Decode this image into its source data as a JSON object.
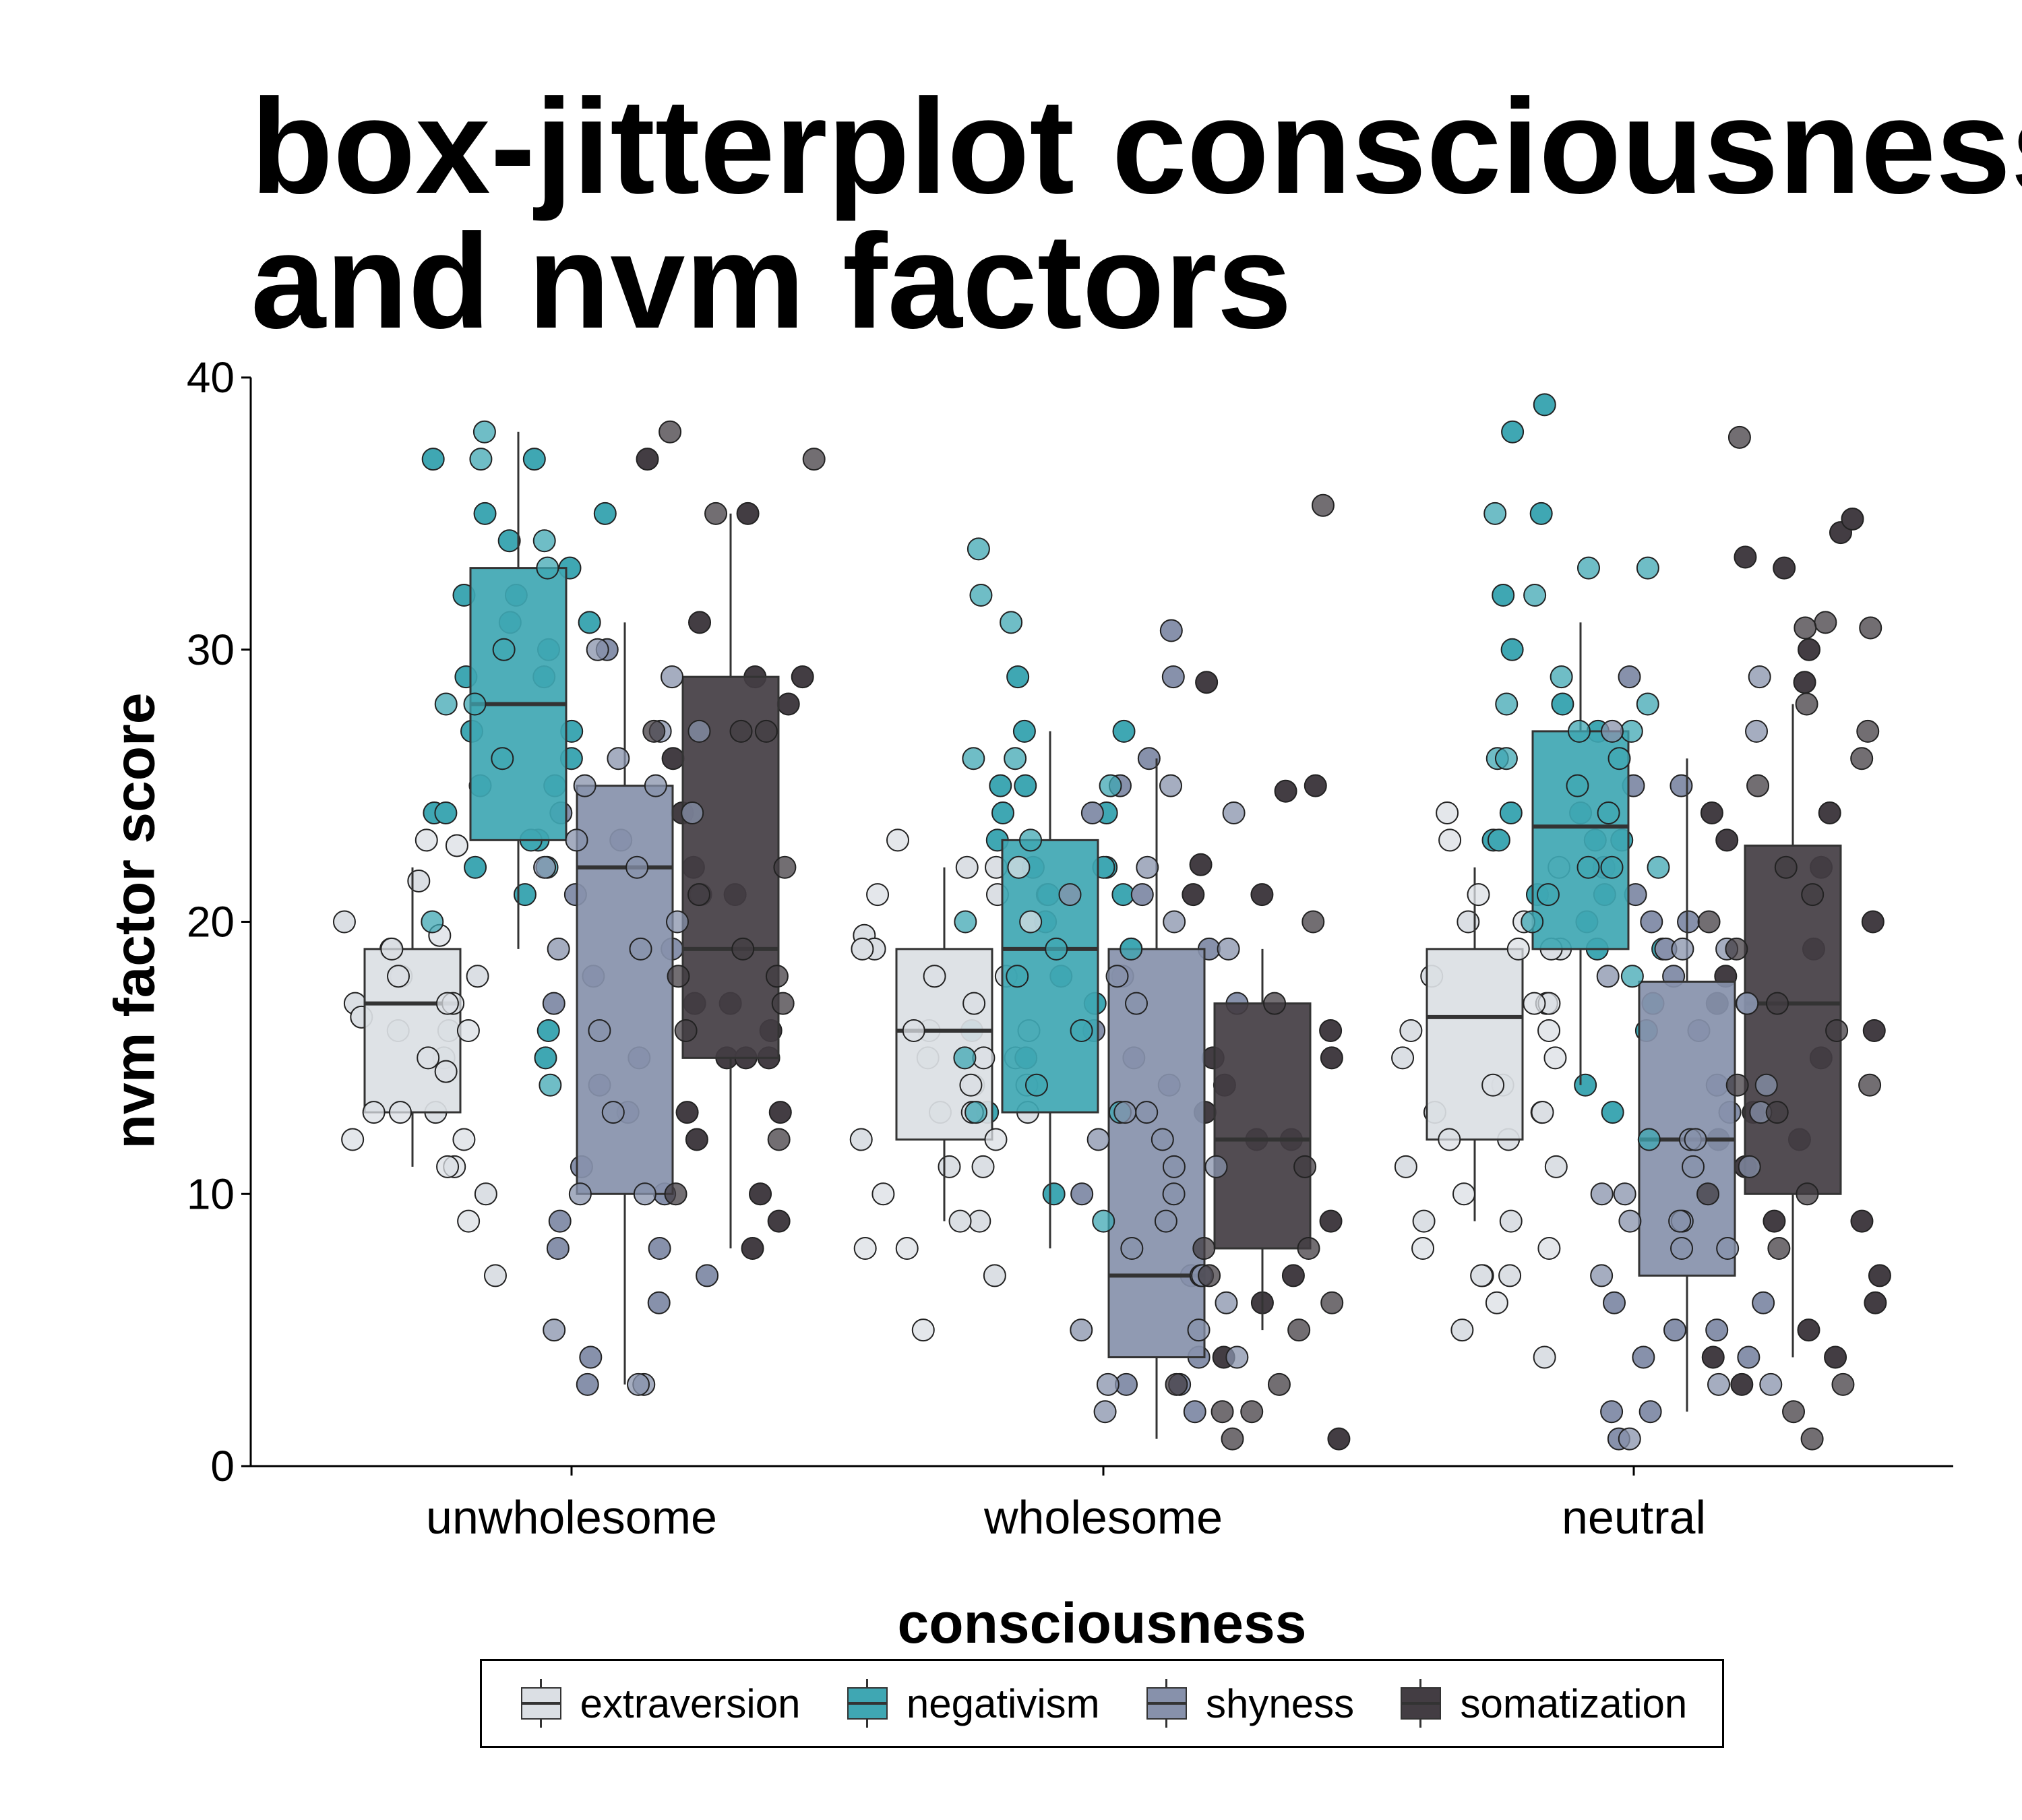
{
  "chart_data": {
    "type": "box-jitter",
    "title_lines": [
      "box-jitterplot consciousness",
      "and nvm factors"
    ],
    "xlabel": "consciousness",
    "ylabel": "nvm factor score",
    "categories": [
      "unwholesome",
      "wholesome",
      "neutral"
    ],
    "ylim": [
      0,
      40
    ],
    "yticks": [
      0,
      10,
      20,
      30,
      40
    ],
    "ytick_labels": [
      "0",
      "10",
      "20",
      "30",
      "40"
    ],
    "grid": false,
    "legend_position": "bottom",
    "series": [
      {
        "name": "extraversion",
        "color": "#dbdfe4",
        "boxes": [
          {
            "whislo": 11,
            "q1": 13,
            "med": 17,
            "q3": 19,
            "whishi": 22
          },
          {
            "whislo": 9,
            "q1": 12,
            "med": 16,
            "q3": 19,
            "whishi": 22
          },
          {
            "whislo": 9,
            "q1": 12,
            "med": 16.5,
            "q3": 19,
            "whishi": 22
          }
        ]
      },
      {
        "name": "negativism",
        "color": "#3fa7b3",
        "boxes": [
          {
            "whislo": 19,
            "q1": 23,
            "med": 28,
            "q3": 33,
            "whishi": 38
          },
          {
            "whislo": 8,
            "q1": 13,
            "med": 19,
            "q3": 23,
            "whishi": 27
          },
          {
            "whislo": 14,
            "q1": 19,
            "med": 23.5,
            "q3": 27,
            "whishi": 31
          }
        ]
      },
      {
        "name": "shyness",
        "color": "#8791ab",
        "boxes": [
          {
            "whislo": 3,
            "q1": 10,
            "med": 22,
            "q3": 25,
            "whishi": 31
          },
          {
            "whislo": 1,
            "q1": 4,
            "med": 7,
            "q3": 19,
            "whishi": 26
          },
          {
            "whislo": 2,
            "q1": 7,
            "med": 12,
            "q3": 17.8,
            "whishi": 26
          }
        ]
      },
      {
        "name": "somatization",
        "color": "#433d43",
        "boxes": [
          {
            "whislo": 8,
            "q1": 15,
            "med": 19,
            "q3": 29,
            "whishi": 35
          },
          {
            "whislo": 5,
            "q1": 8,
            "med": 12,
            "q3": 17,
            "whishi": 19
          },
          {
            "whislo": 4,
            "q1": 10,
            "med": 17,
            "q3": 22.8,
            "whishi": 28
          }
        ]
      }
    ],
    "points": [
      [
        [
          19.5,
          13,
          15,
          17,
          16,
          11,
          12,
          23,
          16.5,
          18,
          20,
          17,
          13,
          10,
          18,
          9,
          12,
          19,
          7,
          22.8,
          18,
          16,
          21.5,
          11,
          15,
          14.5,
          17,
          19,
          16,
          13
        ],
        [
          28,
          33,
          37,
          30,
          26,
          21,
          23,
          24,
          34,
          22,
          32,
          29,
          31,
          37,
          34,
          27,
          25,
          35,
          32,
          30,
          23,
          24,
          28,
          31,
          35,
          27,
          26,
          20,
          25,
          33,
          37,
          38,
          22,
          29,
          16,
          15,
          14
        ],
        [
          22,
          25,
          18,
          16,
          10,
          8,
          7,
          13,
          20,
          23,
          24,
          30,
          3,
          5,
          19,
          19,
          27,
          21,
          27,
          17,
          14,
          23,
          15,
          11,
          4,
          3,
          10,
          6,
          25,
          29,
          9,
          26,
          8,
          3,
          13,
          19,
          21,
          10,
          24,
          22,
          30
        ],
        [
          37,
          35,
          26,
          17,
          15,
          13,
          10,
          12,
          35,
          27,
          29,
          37,
          22,
          16,
          21,
          18,
          24,
          17,
          31,
          9,
          27,
          28,
          18,
          38,
          16,
          15,
          27,
          8,
          10,
          13,
          17,
          19,
          22,
          29,
          21,
          15,
          12
        ]
      ],
      [
        [
          19.5,
          22,
          23,
          17,
          15,
          14,
          13,
          11,
          9,
          8,
          8,
          18,
          16,
          19,
          21,
          13,
          11,
          16,
          17,
          12,
          14,
          15,
          19,
          21,
          20,
          18,
          22,
          22,
          7,
          5,
          15,
          12,
          16,
          14,
          10,
          9,
          13
        ],
        [
          31,
          33.7,
          32,
          25,
          21,
          16,
          16,
          15,
          23,
          22,
          25,
          24,
          20,
          18,
          14,
          13,
          13,
          10,
          9,
          26,
          27,
          27,
          26,
          25,
          21,
          20,
          19,
          18,
          17,
          15,
          13,
          29,
          22,
          22,
          19,
          23,
          24,
          21,
          19
        ],
        [
          29,
          25,
          24,
          18,
          16,
          12,
          7,
          6,
          4,
          3,
          2,
          2,
          4,
          7,
          7,
          5,
          11,
          13,
          17,
          19,
          26,
          25,
          24,
          21,
          17,
          15,
          14,
          12,
          11,
          10,
          8,
          5,
          3,
          30.7,
          21,
          10,
          22,
          18,
          19,
          20,
          3,
          9,
          13
        ],
        [
          35.3,
          28.8,
          25,
          24.8,
          22.1,
          21,
          20,
          17,
          16,
          15,
          14,
          12,
          11,
          9,
          8,
          8,
          7,
          6,
          5,
          4,
          3,
          2,
          2,
          1,
          1,
          7,
          6,
          3,
          21,
          15,
          13,
          12
        ]
      ],
      [
        [
          19,
          17,
          15,
          14,
          13,
          12,
          11,
          9,
          8,
          7,
          6,
          5,
          4,
          21,
          22,
          20,
          16,
          17,
          18,
          19,
          13,
          14,
          15,
          10,
          9,
          8,
          12,
          11,
          19,
          20,
          24,
          23,
          17,
          16,
          13,
          7,
          7
        ],
        [
          33,
          32,
          28,
          27,
          26,
          24,
          23,
          22,
          21,
          20,
          19,
          18,
          17,
          16,
          14,
          13,
          12,
          23,
          27,
          33,
          38,
          35,
          30,
          29,
          28,
          26,
          25,
          24,
          22,
          21,
          19,
          21,
          39,
          28,
          27,
          20,
          24,
          23,
          26,
          32,
          35,
          22,
          23
        ],
        [
          29,
          27,
          25,
          22,
          20,
          19,
          18,
          17,
          16,
          14,
          13,
          12,
          11,
          10,
          9,
          8,
          7,
          6,
          5,
          4,
          3,
          2,
          1,
          1,
          29,
          27,
          20,
          19,
          18,
          17,
          14,
          12,
          10,
          8,
          5,
          4,
          3,
          2,
          21,
          19,
          25,
          11,
          9,
          9,
          6,
          13
        ],
        [
          37.8,
          34.3,
          34.8,
          33.4,
          33,
          31,
          30,
          28,
          27,
          25,
          24,
          23,
          22,
          21,
          20,
          19,
          18,
          17,
          16,
          15,
          14,
          13,
          12,
          11,
          10,
          9,
          8,
          7,
          6,
          5,
          4,
          3,
          2,
          1,
          30.8,
          30.8,
          28.8,
          24,
          26,
          22,
          19,
          16,
          13,
          9,
          4,
          3,
          20,
          17,
          14,
          12,
          10
        ]
      ]
    ]
  },
  "legend": {
    "items": [
      {
        "label": "extraversion",
        "color": "#dbdfe4"
      },
      {
        "label": "negativism",
        "color": "#3fa7b3"
      },
      {
        "label": "shyness",
        "color": "#8791ab"
      },
      {
        "label": "somatization",
        "color": "#433d43"
      }
    ]
  }
}
